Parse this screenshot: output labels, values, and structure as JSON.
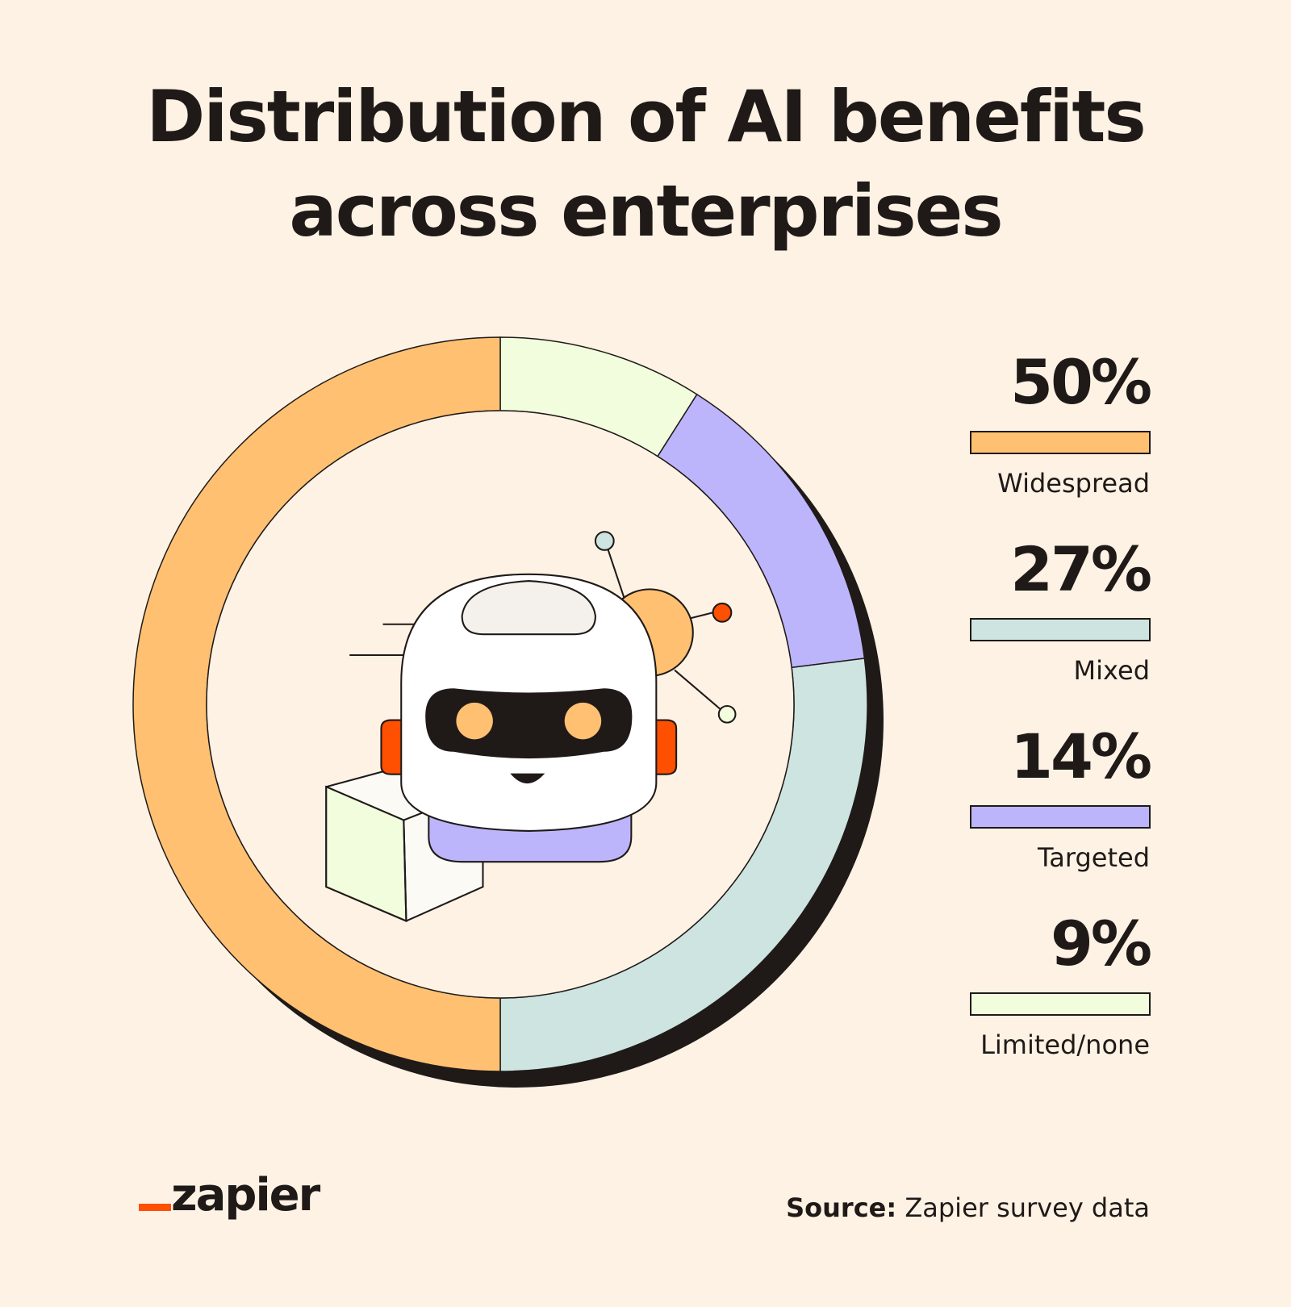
{
  "chart_data": {
    "type": "donut",
    "title": [
      "Distribution of AI benefits",
      "across enterprises"
    ],
    "categories": [
      "Widespread",
      "Mixed",
      "Targeted",
      "Limited/none"
    ],
    "values": [
      50,
      27,
      14,
      9
    ],
    "value_labels": [
      "50%",
      "27%",
      "14%",
      "9%"
    ],
    "colors": [
      "#ffc072",
      "#cde4e0",
      "#bdb5fb",
      "#f1fddc"
    ],
    "source_label": "Source:",
    "source": "Zapier survey data",
    "logo": "zapier"
  }
}
